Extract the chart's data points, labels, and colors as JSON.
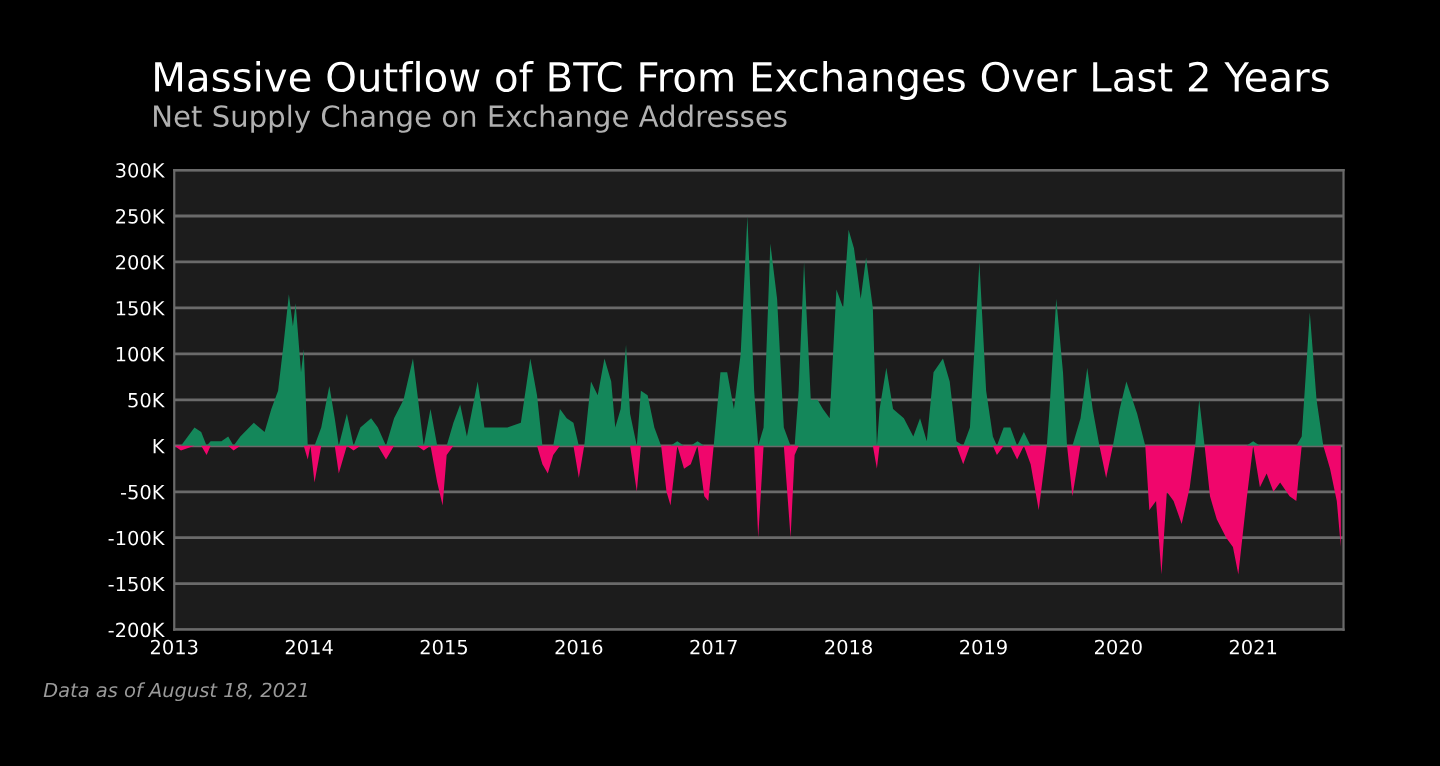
{
  "chart_data": {
    "type": "area",
    "title": "Massive Outflow of BTC From Exchanges Over Last 2 Years",
    "subtitle": "Net Supply Change on Exchange Addresses",
    "annotations": [
      "Data as of August 18, 2021"
    ],
    "x": [
      2013.0,
      2013.05,
      2013.15,
      2013.2,
      2013.24,
      2013.27,
      2013.35,
      2013.4,
      2013.44,
      2013.49,
      2013.59,
      2013.67,
      2013.72,
      2013.77,
      2013.81,
      2013.85,
      2013.88,
      2013.9,
      2013.94,
      2013.96,
      2013.99,
      2014.01,
      2014.04,
      2014.09,
      2014.15,
      2014.19,
      2014.22,
      2014.28,
      2014.33,
      2014.38,
      2014.46,
      2014.51,
      2014.57,
      2014.63,
      2014.7,
      2014.77,
      2014.8,
      2014.85,
      2014.9,
      2014.95,
      2014.99,
      2015.02,
      2015.07,
      2015.12,
      2015.17,
      2015.25,
      2015.3,
      2015.37,
      2015.47,
      2015.57,
      2015.64,
      2015.69,
      2015.73,
      2015.77,
      2015.81,
      2015.86,
      2015.91,
      2015.96,
      2016.0,
      2016.04,
      2016.09,
      2016.14,
      2016.19,
      2016.24,
      2016.27,
      2016.31,
      2016.35,
      2016.38,
      2016.43,
      2016.46,
      2016.51,
      2016.56,
      2016.61,
      2016.65,
      2016.68,
      2016.73,
      2016.78,
      2016.83,
      2016.88,
      2016.93,
      2016.96,
      2017.0,
      2017.05,
      2017.1,
      2017.15,
      2017.2,
      2017.25,
      2017.3,
      2017.33,
      2017.37,
      2017.42,
      2017.47,
      2017.52,
      2017.57,
      2017.6,
      2017.63,
      2017.67,
      2017.72,
      2017.77,
      2017.81,
      2017.86,
      2017.91,
      2017.96,
      2018.0,
      2018.04,
      2018.09,
      2018.13,
      2018.18,
      2018.21,
      2018.23,
      2018.28,
      2018.33,
      2018.41,
      2018.48,
      2018.53,
      2018.58,
      2018.63,
      2018.7,
      2018.75,
      2018.8,
      2018.85,
      2018.9,
      2018.97,
      2019.02,
      2019.07,
      2019.1,
      2019.15,
      2019.2,
      2019.25,
      2019.3,
      2019.35,
      2019.41,
      2019.47,
      2019.49,
      2019.54,
      2019.59,
      2019.62,
      2019.66,
      2019.72,
      2019.77,
      2019.81,
      2019.86,
      2019.91,
      2019.96,
      2020.01,
      2020.06,
      2020.14,
      2020.2,
      2020.23,
      2020.28,
      2020.32,
      2020.36,
      2020.41,
      2020.47,
      2020.53,
      2020.57,
      2020.6,
      2020.64,
      2020.68,
      2020.73,
      2020.8,
      2020.85,
      2020.89,
      2020.95,
      2021.0,
      2021.05,
      2021.1,
      2021.15,
      2021.2,
      2021.27,
      2021.32,
      2021.36,
      2021.4,
      2021.42,
      2021.47,
      2021.52,
      2021.57,
      2021.62,
      2021.65
    ],
    "series": [
      {
        "color": "#14875a",
        "values": [
          0,
          0,
          20000,
          15000,
          0,
          5000,
          5000,
          10000,
          0,
          10000,
          25000,
          15000,
          40000,
          60000,
          110000,
          165000,
          130000,
          155000,
          80000,
          105000,
          0,
          0,
          0,
          20000,
          65000,
          30000,
          0,
          35000,
          0,
          20000,
          30000,
          20000,
          0,
          30000,
          50000,
          95000,
          60000,
          0,
          40000,
          0,
          0,
          0,
          25000,
          45000,
          10000,
          70000,
          20000,
          20000,
          20000,
          25000,
          95000,
          55000,
          0,
          0,
          0,
          40000,
          30000,
          25000,
          0,
          0,
          70000,
          55000,
          95000,
          70000,
          20000,
          40000,
          110000,
          35000,
          0,
          60000,
          55000,
          20000,
          0,
          0,
          0,
          5000,
          0,
          0,
          5000,
          0,
          0,
          0,
          80000,
          80000,
          40000,
          100000,
          250000,
          60000,
          0,
          20000,
          220000,
          160000,
          20000,
          0,
          0,
          60000,
          200000,
          50000,
          50000,
          40000,
          30000,
          170000,
          150000,
          235000,
          215000,
          160000,
          205000,
          150000,
          0,
          40000,
          85000,
          40000,
          30000,
          10000,
          30000,
          5000,
          80000,
          95000,
          70000,
          5000,
          0,
          20000,
          200000,
          60000,
          10000,
          0,
          20000,
          20000,
          0,
          15000,
          0,
          0,
          0,
          40000,
          160000,
          80000,
          0,
          0,
          30000,
          85000,
          40000,
          0,
          0,
          0,
          40000,
          70000,
          35000,
          0,
          0,
          0,
          0,
          0,
          0,
          0,
          0,
          0,
          50000,
          0,
          0,
          0,
          0,
          0,
          0,
          0,
          5000,
          0,
          0,
          0,
          0,
          0,
          0,
          10000,
          100000,
          145000,
          50000,
          0,
          0,
          0,
          0
        ]
      },
      {
        "color": "#f0066c",
        "values": [
          0,
          -5000,
          0,
          0,
          -10000,
          0,
          0,
          0,
          -5000,
          0,
          0,
          0,
          0,
          0,
          0,
          0,
          0,
          0,
          0,
          0,
          -15000,
          0,
          -40000,
          0,
          0,
          0,
          -30000,
          0,
          -5000,
          0,
          0,
          0,
          -15000,
          0,
          0,
          0,
          0,
          -5000,
          0,
          -40000,
          -65000,
          -10000,
          0,
          0,
          0,
          0,
          0,
          0,
          0,
          0,
          0,
          0,
          -20000,
          -30000,
          -10000,
          0,
          0,
          0,
          -35000,
          0,
          0,
          0,
          0,
          0,
          0,
          0,
          0,
          0,
          -50000,
          0,
          0,
          0,
          0,
          -50000,
          -65000,
          0,
          -25000,
          -20000,
          0,
          -55000,
          -60000,
          0,
          0,
          0,
          0,
          0,
          0,
          0,
          -100000,
          0,
          0,
          0,
          0,
          -100000,
          -10000,
          0,
          0,
          0,
          0,
          0,
          0,
          0,
          0,
          0,
          0,
          0,
          0,
          0,
          -25000,
          0,
          0,
          0,
          0,
          0,
          0,
          0,
          0,
          0,
          0,
          0,
          -20000,
          0,
          0,
          0,
          0,
          -10000,
          0,
          0,
          -15000,
          0,
          -20000,
          -70000,
          0,
          0,
          0,
          0,
          0,
          -55000,
          0,
          0,
          0,
          0,
          -35000,
          0,
          0,
          0,
          0,
          0,
          -70000,
          -60000,
          -140000,
          -50000,
          -60000,
          -85000,
          -45000,
          0,
          0,
          0,
          -55000,
          -80000,
          -100000,
          -110000,
          -140000,
          -60000,
          0,
          -45000,
          -30000,
          -50000,
          -40000,
          -55000,
          -60000,
          0,
          0,
          0,
          0,
          0,
          -25000,
          -60000,
          -110000
        ]
      }
    ],
    "xlim": [
      2013,
      2021.67
    ],
    "xticks": [
      2013,
      2014,
      2015,
      2016,
      2017,
      2018,
      2019,
      2020,
      2021
    ],
    "ylim": [
      -200000,
      300000
    ],
    "yticks": [
      {
        "value": -200000,
        "label": "-200K"
      },
      {
        "value": -150000,
        "label": "-150K"
      },
      {
        "value": -100000,
        "label": "-100K"
      },
      {
        "value": -50000,
        "label": "-50K"
      },
      {
        "value": 0,
        "label": "K"
      },
      {
        "value": 50000,
        "label": "50K"
      },
      {
        "value": 100000,
        "label": "100K"
      },
      {
        "value": 150000,
        "label": "150K"
      },
      {
        "value": 200000,
        "label": "200K"
      },
      {
        "value": 250000,
        "label": "250K"
      },
      {
        "value": 300000,
        "label": "300K"
      }
    ],
    "grid": "y"
  }
}
